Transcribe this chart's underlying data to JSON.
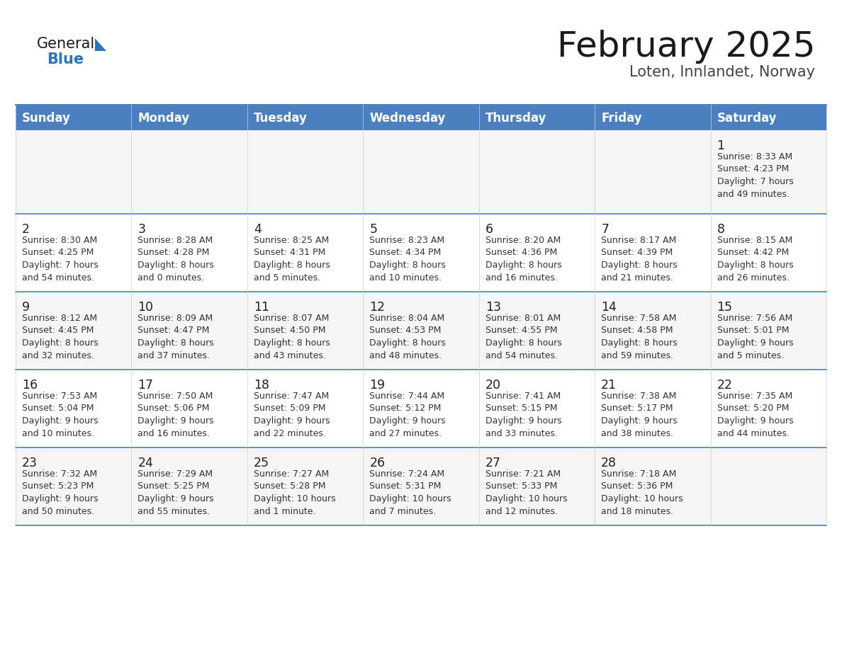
{
  "title": "February 2025",
  "subtitle": "Loten, Innlandet, Norway",
  "header_bg": "#4A7FC0",
  "header_text": "#FFFFFF",
  "row_bg": [
    "#F5F5F5",
    "#FFFFFF",
    "#F5F5F5",
    "#FFFFFF",
    "#F5F5F5"
  ],
  "line_color": "#4A7FC0",
  "day_headers": [
    "Sunday",
    "Monday",
    "Tuesday",
    "Wednesday",
    "Thursday",
    "Friday",
    "Saturday"
  ],
  "title_color": "#1a1a1a",
  "subtitle_color": "#444444",
  "cell_text_color": "#333333",
  "day_number_color": "#222222",
  "logo_general_color": "#1a1a1a",
  "logo_blue_color": "#2E75B6",
  "calendar": [
    [
      {
        "day": null,
        "text": ""
      },
      {
        "day": null,
        "text": ""
      },
      {
        "day": null,
        "text": ""
      },
      {
        "day": null,
        "text": ""
      },
      {
        "day": null,
        "text": ""
      },
      {
        "day": null,
        "text": ""
      },
      {
        "day": 1,
        "text": "Sunrise: 8:33 AM\nSunset: 4:23 PM\nDaylight: 7 hours\nand 49 minutes."
      }
    ],
    [
      {
        "day": 2,
        "text": "Sunrise: 8:30 AM\nSunset: 4:25 PM\nDaylight: 7 hours\nand 54 minutes."
      },
      {
        "day": 3,
        "text": "Sunrise: 8:28 AM\nSunset: 4:28 PM\nDaylight: 8 hours\nand 0 minutes."
      },
      {
        "day": 4,
        "text": "Sunrise: 8:25 AM\nSunset: 4:31 PM\nDaylight: 8 hours\nand 5 minutes."
      },
      {
        "day": 5,
        "text": "Sunrise: 8:23 AM\nSunset: 4:34 PM\nDaylight: 8 hours\nand 10 minutes."
      },
      {
        "day": 6,
        "text": "Sunrise: 8:20 AM\nSunset: 4:36 PM\nDaylight: 8 hours\nand 16 minutes."
      },
      {
        "day": 7,
        "text": "Sunrise: 8:17 AM\nSunset: 4:39 PM\nDaylight: 8 hours\nand 21 minutes."
      },
      {
        "day": 8,
        "text": "Sunrise: 8:15 AM\nSunset: 4:42 PM\nDaylight: 8 hours\nand 26 minutes."
      }
    ],
    [
      {
        "day": 9,
        "text": "Sunrise: 8:12 AM\nSunset: 4:45 PM\nDaylight: 8 hours\nand 32 minutes."
      },
      {
        "day": 10,
        "text": "Sunrise: 8:09 AM\nSunset: 4:47 PM\nDaylight: 8 hours\nand 37 minutes."
      },
      {
        "day": 11,
        "text": "Sunrise: 8:07 AM\nSunset: 4:50 PM\nDaylight: 8 hours\nand 43 minutes."
      },
      {
        "day": 12,
        "text": "Sunrise: 8:04 AM\nSunset: 4:53 PM\nDaylight: 8 hours\nand 48 minutes."
      },
      {
        "day": 13,
        "text": "Sunrise: 8:01 AM\nSunset: 4:55 PM\nDaylight: 8 hours\nand 54 minutes."
      },
      {
        "day": 14,
        "text": "Sunrise: 7:58 AM\nSunset: 4:58 PM\nDaylight: 8 hours\nand 59 minutes."
      },
      {
        "day": 15,
        "text": "Sunrise: 7:56 AM\nSunset: 5:01 PM\nDaylight: 9 hours\nand 5 minutes."
      }
    ],
    [
      {
        "day": 16,
        "text": "Sunrise: 7:53 AM\nSunset: 5:04 PM\nDaylight: 9 hours\nand 10 minutes."
      },
      {
        "day": 17,
        "text": "Sunrise: 7:50 AM\nSunset: 5:06 PM\nDaylight: 9 hours\nand 16 minutes."
      },
      {
        "day": 18,
        "text": "Sunrise: 7:47 AM\nSunset: 5:09 PM\nDaylight: 9 hours\nand 22 minutes."
      },
      {
        "day": 19,
        "text": "Sunrise: 7:44 AM\nSunset: 5:12 PM\nDaylight: 9 hours\nand 27 minutes."
      },
      {
        "day": 20,
        "text": "Sunrise: 7:41 AM\nSunset: 5:15 PM\nDaylight: 9 hours\nand 33 minutes."
      },
      {
        "day": 21,
        "text": "Sunrise: 7:38 AM\nSunset: 5:17 PM\nDaylight: 9 hours\nand 38 minutes."
      },
      {
        "day": 22,
        "text": "Sunrise: 7:35 AM\nSunset: 5:20 PM\nDaylight: 9 hours\nand 44 minutes."
      }
    ],
    [
      {
        "day": 23,
        "text": "Sunrise: 7:32 AM\nSunset: 5:23 PM\nDaylight: 9 hours\nand 50 minutes."
      },
      {
        "day": 24,
        "text": "Sunrise: 7:29 AM\nSunset: 5:25 PM\nDaylight: 9 hours\nand 55 minutes."
      },
      {
        "day": 25,
        "text": "Sunrise: 7:27 AM\nSunset: 5:28 PM\nDaylight: 10 hours\nand 1 minute."
      },
      {
        "day": 26,
        "text": "Sunrise: 7:24 AM\nSunset: 5:31 PM\nDaylight: 10 hours\nand 7 minutes."
      },
      {
        "day": 27,
        "text": "Sunrise: 7:21 AM\nSunset: 5:33 PM\nDaylight: 10 hours\nand 12 minutes."
      },
      {
        "day": 28,
        "text": "Sunrise: 7:18 AM\nSunset: 5:36 PM\nDaylight: 10 hours\nand 18 minutes."
      },
      {
        "day": null,
        "text": ""
      }
    ]
  ],
  "figsize": [
    11.88,
    9.18
  ],
  "dpi": 100
}
